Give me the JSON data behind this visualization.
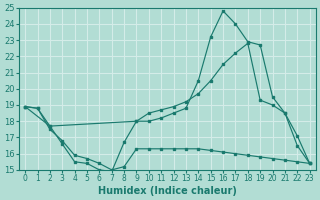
{
  "xlabel": "Humidex (Indice chaleur)",
  "bg_color": "#b2ddd4",
  "grid_color": "#d4ece8",
  "line_color": "#1a7a6e",
  "xlim": [
    -0.5,
    23.5
  ],
  "ylim": [
    15,
    25
  ],
  "xticks": [
    0,
    1,
    2,
    3,
    4,
    5,
    6,
    7,
    8,
    9,
    10,
    11,
    12,
    13,
    14,
    15,
    16,
    17,
    18,
    19,
    20,
    21,
    22,
    23
  ],
  "yticks": [
    15,
    16,
    17,
    18,
    19,
    20,
    21,
    22,
    23,
    24,
    25
  ],
  "line1_x": [
    0,
    1,
    2,
    3,
    4,
    5,
    6,
    7,
    8,
    9,
    10,
    11,
    12,
    13,
    14,
    15,
    16,
    17,
    18,
    19,
    20,
    21,
    22,
    23
  ],
  "line1_y": [
    18.9,
    18.8,
    17.7,
    16.6,
    15.5,
    15.4,
    15.0,
    14.9,
    16.7,
    18.0,
    18.0,
    18.2,
    18.5,
    18.8,
    20.5,
    23.2,
    24.8,
    24.0,
    22.9,
    22.7,
    19.5,
    18.5,
    17.1,
    15.4
  ],
  "line2_x": [
    0,
    2,
    9,
    10,
    11,
    12,
    13,
    14,
    15,
    16,
    17,
    18,
    19,
    20,
    21,
    22,
    23
  ],
  "line2_y": [
    18.9,
    17.7,
    18.0,
    18.5,
    18.7,
    18.9,
    19.2,
    19.7,
    20.5,
    21.5,
    22.2,
    22.8,
    19.3,
    19.0,
    18.5,
    16.5,
    15.4
  ],
  "line3_x": [
    0,
    1,
    2,
    3,
    4,
    5,
    6,
    7,
    8,
    9,
    10,
    11,
    12,
    13,
    14,
    15,
    16,
    17,
    18,
    19,
    20,
    21,
    22,
    23
  ],
  "line3_y": [
    18.9,
    18.8,
    17.5,
    16.8,
    15.9,
    15.7,
    15.4,
    15.0,
    15.2,
    16.3,
    16.3,
    16.3,
    16.3,
    16.3,
    16.3,
    16.2,
    16.1,
    16.0,
    15.9,
    15.8,
    15.7,
    15.6,
    15.5,
    15.4
  ]
}
